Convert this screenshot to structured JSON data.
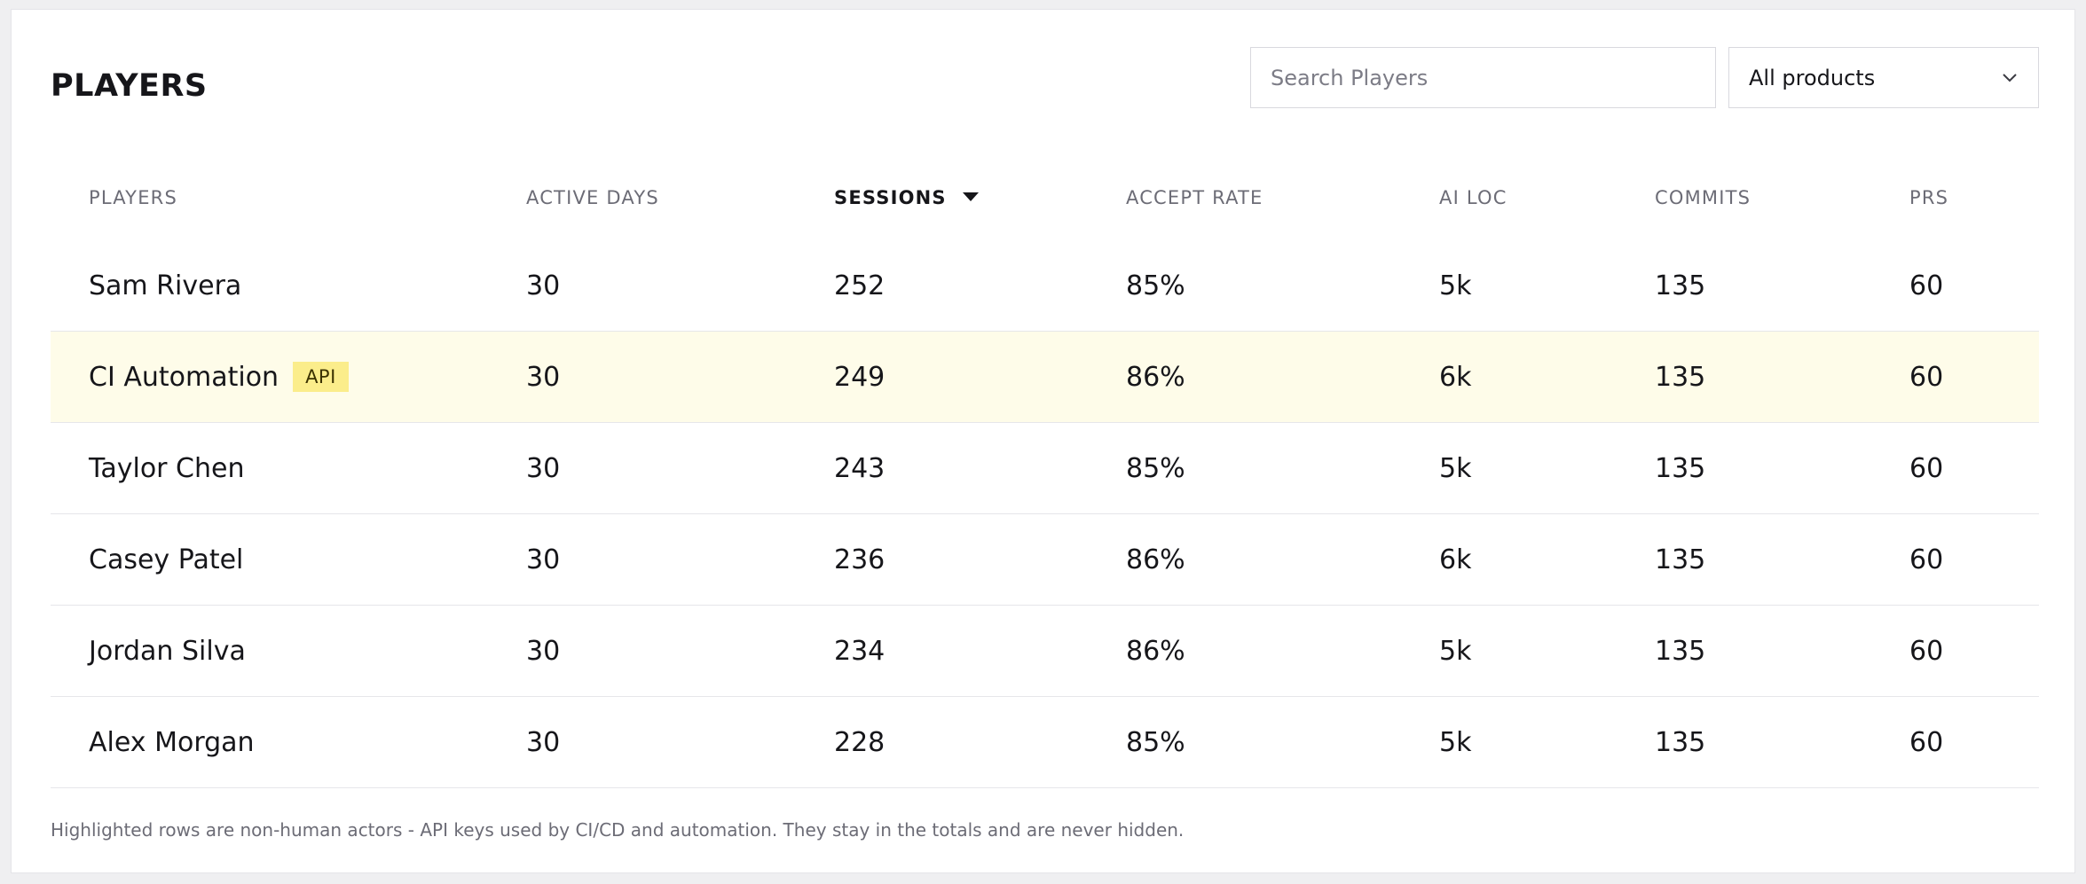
{
  "page": {
    "title": "PLAYERS"
  },
  "search": {
    "placeholder": "Search Players"
  },
  "filter": {
    "selected": "All products",
    "chevron_icon": "chevron-down-icon"
  },
  "table": {
    "columns": [
      "PLAYERS",
      "ACTIVE DAYS",
      "SESSIONS",
      "ACCEPT RATE",
      "AI LOC",
      "COMMITS",
      "PRS"
    ],
    "sorted_column": "SESSIONS",
    "sort_direction": "descending",
    "highlight_color": "#fefce9",
    "badge_color": "#fbed8b",
    "rows": [
      {
        "name": "Sam Rivera",
        "badge": "",
        "active_days": "30",
        "sessions": "252",
        "accept_rate": "85%",
        "ai_loc": "5k",
        "commits": "135",
        "prs": "60"
      },
      {
        "name": "CI Automation",
        "badge": "API",
        "active_days": "30",
        "sessions": "249",
        "accept_rate": "86%",
        "ai_loc": "6k",
        "commits": "135",
        "prs": "60"
      },
      {
        "name": "Taylor Chen",
        "badge": "",
        "active_days": "30",
        "sessions": "243",
        "accept_rate": "85%",
        "ai_loc": "5k",
        "commits": "135",
        "prs": "60"
      },
      {
        "name": "Casey Patel",
        "badge": "",
        "active_days": "30",
        "sessions": "236",
        "accept_rate": "86%",
        "ai_loc": "6k",
        "commits": "135",
        "prs": "60"
      },
      {
        "name": "Jordan Silva",
        "badge": "",
        "active_days": "30",
        "sessions": "234",
        "accept_rate": "86%",
        "ai_loc": "5k",
        "commits": "135",
        "prs": "60"
      },
      {
        "name": "Alex Morgan",
        "badge": "",
        "active_days": "30",
        "sessions": "228",
        "accept_rate": "85%",
        "ai_loc": "5k",
        "commits": "135",
        "prs": "60"
      }
    ]
  },
  "footnote": "Highlighted rows are non-human actors - API keys used by CI/CD and automation. They stay in the totals and are never hidden."
}
